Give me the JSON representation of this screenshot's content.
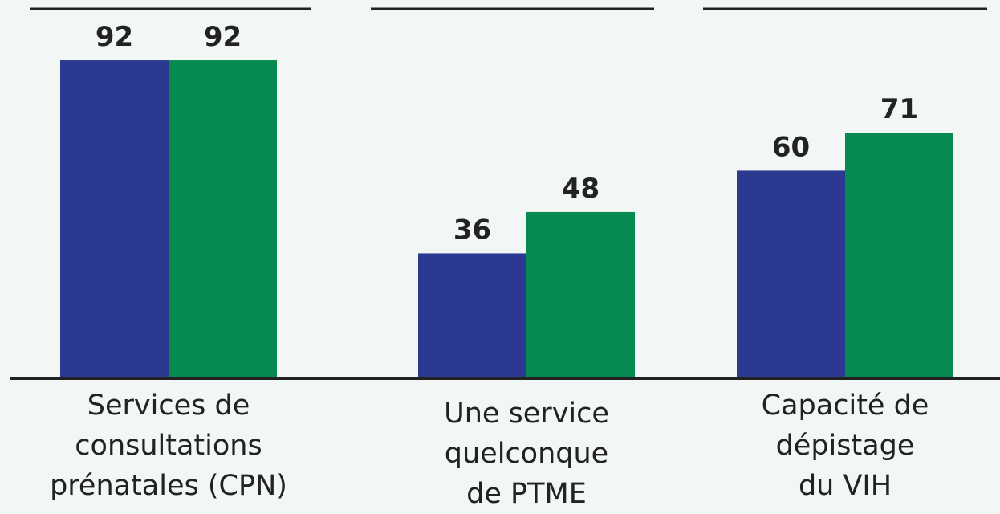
{
  "chart_data": {
    "type": "bar",
    "categories": [
      "Services de\nconsultations\nprénatales (CPN)",
      "Une service\nquelconque\nde PTME",
      "Capacité de\ndépistage\ndu VIH"
    ],
    "series": [
      {
        "color": "#2b3990",
        "values": [
          92,
          36,
          60
        ]
      },
      {
        "color": "#068a50",
        "values": [
          92,
          48,
          71
        ]
      }
    ],
    "ylim": [
      0,
      100
    ]
  }
}
